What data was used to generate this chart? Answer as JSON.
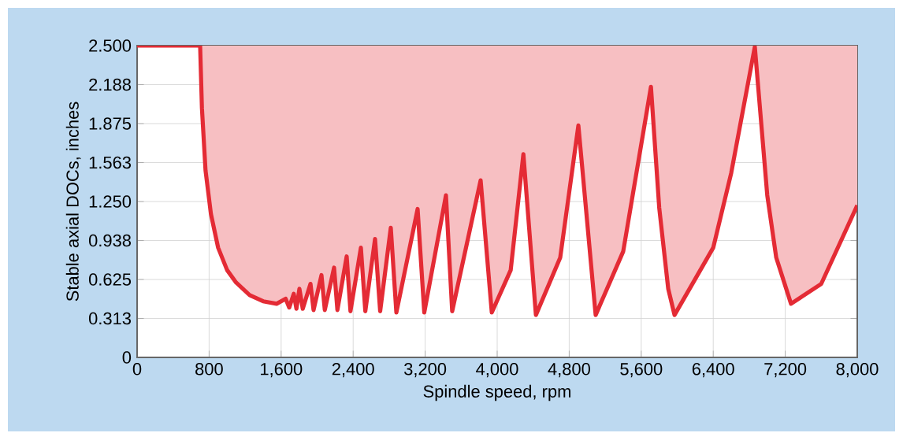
{
  "chart_data": {
    "type": "line",
    "xlabel": "Spindle speed, rpm",
    "ylabel": "Stable axial DOCs, inches",
    "x": [
      0,
      700,
      720,
      760,
      820,
      900,
      1000,
      1100,
      1250,
      1400,
      1550,
      1650,
      1690,
      1740,
      1770,
      1803,
      1840,
      1926,
      1960,
      2048,
      2085,
      2188,
      2225,
      2328,
      2370,
      2486,
      2535,
      2643,
      2700,
      2818,
      2880,
      3116,
      3190,
      3431,
      3500,
      3816,
      3940,
      4150,
      4291,
      4430,
      4700,
      4902,
      5094,
      5400,
      5708,
      5800,
      5900,
      5970,
      6400,
      6600,
      6862,
      7000,
      7100,
      7264,
      7600,
      8000
    ],
    "series": [
      {
        "color": "#e42b35",
        "values": [
          2.5,
          2.5,
          2.0,
          1.5,
          1.15,
          0.88,
          0.7,
          0.6,
          0.5,
          0.45,
          0.43,
          0.47,
          0.4,
          0.51,
          0.39,
          0.55,
          0.39,
          0.59,
          0.38,
          0.66,
          0.38,
          0.72,
          0.38,
          0.81,
          0.37,
          0.88,
          0.37,
          0.95,
          0.37,
          1.04,
          0.36,
          1.19,
          0.36,
          1.3,
          0.37,
          1.42,
          0.36,
          0.7,
          1.63,
          0.34,
          0.8,
          1.86,
          0.34,
          0.85,
          2.17,
          1.2,
          0.55,
          0.34,
          0.88,
          1.48,
          2.49,
          1.3,
          0.8,
          0.43,
          0.59,
          1.22
        ],
        "lower": [
          2.5,
          2.5,
          2.0,
          1.5,
          1.15,
          0.88,
          0.7,
          0.6,
          0.5,
          0.45,
          0.43,
          0.47,
          0.4,
          0.51,
          0.39,
          0.55,
          0.39,
          0.59,
          0.38,
          0.66,
          0.38,
          0.72,
          0.38,
          0.81,
          0.37,
          0.88,
          0.37,
          0.95,
          0.37,
          1.04,
          0.36,
          1.19,
          0.36,
          1.3,
          0.37,
          1.42,
          0.36,
          0.7,
          1.63,
          0.34,
          0.8,
          1.86,
          0.34,
          0.85,
          2.17,
          1.2,
          0.55,
          0.34,
          0.88,
          1.48,
          2.49,
          1.3,
          0.8,
          0.43,
          0.59,
          1.22
        ],
        "upper": [
          2.5,
          2.5,
          2.5,
          2.5,
          2.5,
          2.5,
          2.5,
          2.5,
          2.5,
          2.5,
          2.5,
          2.5,
          2.5,
          2.5,
          2.5,
          2.5,
          2.5,
          2.5,
          2.5,
          2.5,
          2.5,
          2.5,
          2.5,
          2.5,
          2.5,
          2.5,
          2.5,
          2.5,
          2.5,
          2.5,
          2.5,
          2.5,
          2.5,
          2.5,
          2.5,
          2.5,
          2.5,
          2.5,
          2.5,
          2.5,
          2.5,
          2.5,
          2.5,
          2.5,
          2.5,
          2.5,
          2.5,
          2.5,
          2.5,
          2.5,
          2.5,
          2.5,
          2.5,
          2.5,
          2.5,
          2.5
        ]
      }
    ],
    "xlim": [
      0,
      8000
    ],
    "ylim": [
      0,
      2.5
    ],
    "xticks": [
      0,
      {
        "value": 800,
        "label": "800"
      },
      {
        "value": 1600,
        "label": "1,600"
      },
      {
        "value": 2400,
        "label": "2,400"
      },
      {
        "value": 3200,
        "label": "3,200"
      },
      {
        "value": 4000,
        "label": "4,000"
      },
      {
        "value": 4800,
        "label": "4,800"
      },
      {
        "value": 5600,
        "label": "5,600"
      },
      {
        "value": 6400,
        "label": "6,400"
      },
      {
        "value": 7200,
        "label": "7,200"
      },
      {
        "value": 8000,
        "label": "8,000"
      }
    ],
    "yticks": [
      0,
      {
        "value": 0.3125,
        "label": "0.313"
      },
      {
        "value": 0.625,
        "label": "0.625"
      },
      {
        "value": 0.9375,
        "label": "0.938"
      },
      {
        "value": 1.25,
        "label": "1.250"
      },
      {
        "value": 1.5625,
        "label": "1.563"
      },
      {
        "value": 1.875,
        "label": "1.875"
      },
      {
        "value": 2.1875,
        "label": "2.188"
      },
      {
        "value": 2.5,
        "label": "2.500"
      }
    ],
    "grid": true,
    "marker": "none",
    "line_style": "solid"
  }
}
